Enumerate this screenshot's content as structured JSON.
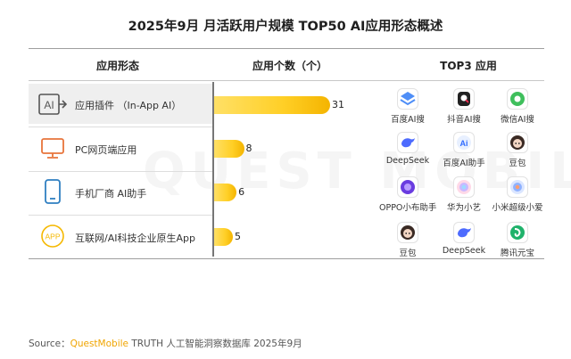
{
  "title": "2025年9月 月活跃用户规模 TOP50 AI应用形态概述",
  "headers": {
    "form": "应用形态",
    "count": "应用个数（个）",
    "top3": "TOP3 应用"
  },
  "watermark_text": "QUEST MOBILE",
  "colors": {
    "bar": "#ffcf26",
    "icon_orange": "#e8743b",
    "icon_blue": "#2f7fc1",
    "icon_yellow": "#f5b800",
    "icon_gray": "#555555"
  },
  "chart_data": {
    "type": "bar",
    "orientation": "horizontal",
    "categories": [
      "应用插件 （In-App AI）",
      "PC网页端应用",
      "手机厂商 AI助手",
      "互联网/AI科技企业原生App"
    ],
    "values": [
      31,
      8,
      6,
      5
    ],
    "value_labels": [
      "31",
      "8",
      "6",
      "5"
    ],
    "xlim": [
      0,
      31
    ],
    "ylabel": "应用个数（个）"
  },
  "rows": [
    {
      "icon": "ai-plugin-icon",
      "label": "应用插件 （In-App AI）",
      "apps": [
        {
          "name": "百度AI搜",
          "icon": "baidu-ai-search-icon"
        },
        {
          "name": "抖音AI搜",
          "icon": "douyin-ai-search-icon"
        },
        {
          "name": "微信AI搜",
          "icon": "wechat-ai-search-icon"
        }
      ]
    },
    {
      "icon": "pc-monitor-icon",
      "label": "PC网页端应用",
      "apps": [
        {
          "name": "DeepSeek",
          "icon": "deepseek-icon"
        },
        {
          "name": "百度AI助手",
          "icon": "baidu-ai-assistant-icon"
        },
        {
          "name": "豆包",
          "icon": "doubao-icon"
        }
      ]
    },
    {
      "icon": "mobile-phone-icon",
      "label": "手机厂商 AI助手",
      "apps": [
        {
          "name": "OPPO小布助手",
          "icon": "oppo-xiaobu-icon"
        },
        {
          "name": "华为小艺",
          "icon": "huawei-xiaoyi-icon"
        },
        {
          "name": "小米超级小爱",
          "icon": "xiaomi-xiaoai-icon"
        }
      ]
    },
    {
      "icon": "app-badge-icon",
      "label": "互联网/AI科技企业原生App",
      "apps": [
        {
          "name": "豆包",
          "icon": "doubao-icon"
        },
        {
          "name": "DeepSeek",
          "icon": "deepseek-icon"
        },
        {
          "name": "腾讯元宝",
          "icon": "tencent-yuanbao-icon"
        }
      ]
    }
  ],
  "source": {
    "prefix": "Source：",
    "brand": "QuestMobile",
    "text": " TRUTH 人工智能洞察数据库 2025年9月"
  }
}
